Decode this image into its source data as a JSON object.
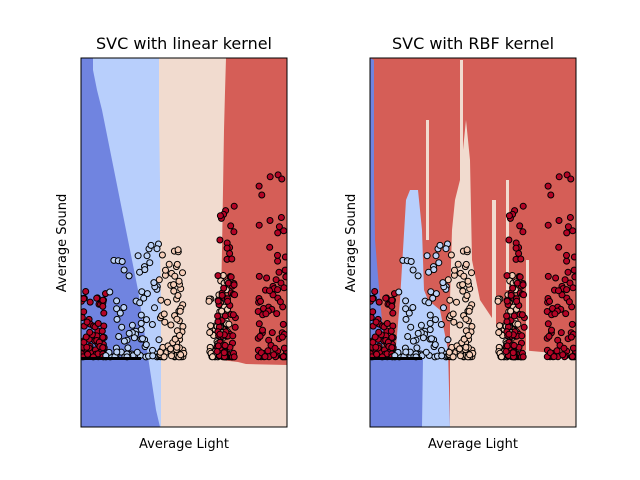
{
  "chart_data": [
    {
      "type": "scatter",
      "subtype": "decision-boundary",
      "title": "SVC with linear kernel",
      "xlabel": "Average Light",
      "ylabel": "Average Sound",
      "show_ticks": false,
      "grid": false,
      "region_colors": [
        "#7084e0",
        "#b8cffc",
        "#f1dbcf",
        "#d55e57"
      ],
      "class_point_colors": [
        "#3b4cc0",
        "#bcd2f7",
        "#f6ceb8",
        "#b40426"
      ],
      "description_of_regions": "four diagonal-to-vertical bands: blue, light blue, beige, red from left to right",
      "point_clusters": [
        {
          "class": 3,
          "x_range": [
            0.0,
            0.12
          ],
          "y_range": [
            0.19,
            0.38
          ]
        },
        {
          "class": 1,
          "x_range": [
            0.12,
            0.38
          ],
          "y_range": [
            0.19,
            0.5
          ]
        },
        {
          "class": 2,
          "x_range": [
            0.38,
            0.5
          ],
          "y_range": [
            0.19,
            0.5
          ]
        },
        {
          "class": 2,
          "x_range": [
            0.62,
            0.72
          ],
          "y_range": [
            0.19,
            0.42
          ]
        },
        {
          "class": 3,
          "x_range": [
            0.66,
            0.75
          ],
          "y_range": [
            0.19,
            0.6
          ]
        },
        {
          "class": 3,
          "x_range": [
            0.86,
            1.0
          ],
          "y_range": [
            0.19,
            0.72
          ]
        }
      ]
    },
    {
      "type": "scatter",
      "subtype": "decision-boundary",
      "title": "SVC with RBF kernel",
      "xlabel": "Average Light",
      "ylabel": "Average Sound",
      "show_ticks": false,
      "grid": false,
      "region_colors": [
        "#7084e0",
        "#b8cffc",
        "#f1dbcf",
        "#d55e57"
      ],
      "class_point_colors": [
        "#3b4cc0",
        "#bcd2f7",
        "#f6ceb8",
        "#b40426"
      ],
      "description_of_regions": "mostly red background with irregular vertical blue, light blue and beige strips near bottom-left",
      "point_clusters": [
        {
          "class": 3,
          "x_range": [
            0.0,
            0.12
          ],
          "y_range": [
            0.19,
            0.38
          ]
        },
        {
          "class": 1,
          "x_range": [
            0.12,
            0.38
          ],
          "y_range": [
            0.19,
            0.5
          ]
        },
        {
          "class": 2,
          "x_range": [
            0.38,
            0.5
          ],
          "y_range": [
            0.19,
            0.5
          ]
        },
        {
          "class": 2,
          "x_range": [
            0.62,
            0.72
          ],
          "y_range": [
            0.19,
            0.42
          ]
        },
        {
          "class": 3,
          "x_range": [
            0.66,
            0.75
          ],
          "y_range": [
            0.19,
            0.6
          ]
        },
        {
          "class": 3,
          "x_range": [
            0.86,
            1.0
          ],
          "y_range": [
            0.19,
            0.72
          ]
        }
      ]
    }
  ]
}
